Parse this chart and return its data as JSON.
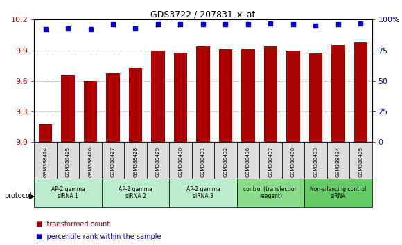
{
  "title": "GDS3722 / 207831_x_at",
  "samples": [
    "GSM388424",
    "GSM388425",
    "GSM388426",
    "GSM388427",
    "GSM388428",
    "GSM388429",
    "GSM388430",
    "GSM388431",
    "GSM388432",
    "GSM388436",
    "GSM388437",
    "GSM388438",
    "GSM388433",
    "GSM388434",
    "GSM388435"
  ],
  "transformed_count": [
    9.18,
    9.65,
    9.6,
    9.67,
    9.73,
    9.9,
    9.88,
    9.94,
    9.91,
    9.91,
    9.94,
    9.9,
    9.87,
    9.95,
    9.98
  ],
  "percentile_rank": [
    92,
    93,
    92,
    96,
    93,
    96,
    96,
    96,
    96,
    96,
    97,
    96,
    95,
    96,
    97
  ],
  "ylim_left": [
    9.0,
    10.2
  ],
  "ylim_right": [
    0,
    100
  ],
  "yticks_left": [
    9.0,
    9.3,
    9.6,
    9.9,
    10.2
  ],
  "yticks_right": [
    0,
    25,
    50,
    75,
    100
  ],
  "bar_color": "#aa0000",
  "dot_color": "#0000cc",
  "groups": [
    {
      "label": "AP-2 gamma\nsiRNA 1",
      "start": 0,
      "end": 3,
      "color": "#bbeecc"
    },
    {
      "label": "AP-2 gamma\nsiRNA 2",
      "start": 3,
      "end": 6,
      "color": "#bbeecc"
    },
    {
      "label": "AP-2 gamma\nsiRNA 3",
      "start": 6,
      "end": 9,
      "color": "#bbeecc"
    },
    {
      "label": "control (transfection\nreagent)",
      "start": 9,
      "end": 12,
      "color": "#88dd88"
    },
    {
      "label": "Non-silencing control\nsiRNA",
      "start": 12,
      "end": 15,
      "color": "#66cc66"
    }
  ],
  "protocol_label": "protocol",
  "legend_items": [
    {
      "color": "#aa0000",
      "label": "transformed count"
    },
    {
      "color": "#0000cc",
      "label": "percentile rank within the sample"
    }
  ],
  "background_color": "#ffffff",
  "plot_bg_color": "#ffffff",
  "grid_color": "#888888",
  "tick_label_color_left": "#cc0000",
  "tick_label_color_right": "#0000cc",
  "sample_box_color": "#dddddd"
}
